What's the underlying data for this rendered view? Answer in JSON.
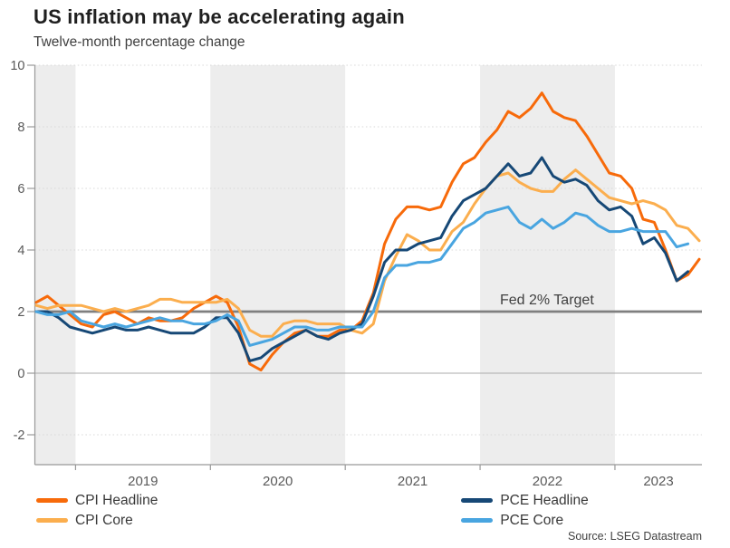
{
  "header": {
    "title": "US inflation may be accelerating again",
    "subtitle": "Twelve-month percentage change"
  },
  "annotations": {
    "fed_target_label": "Fed 2% Target"
  },
  "footer": {
    "source": "Source: LSEG Datastream"
  },
  "colors": {
    "cpi_headline": "#F76A0A",
    "cpi_core": "#FBAE4E",
    "pce_headline": "#164876",
    "pce_core": "#49A5E0",
    "fed_target_line": "#7F7F7F",
    "zero_line": "#ABABAB",
    "axis": "#999999",
    "year_band": "#EDEDED",
    "gridline": "#D8D8D8",
    "tick_label": "#595959"
  },
  "chart_data": {
    "type": "line",
    "title": "US inflation may be accelerating again",
    "subtitle": "Twelve-month percentage change",
    "x_unit": "month",
    "x_start": "2018-09",
    "x_tick_labels": [
      "2019",
      "2020",
      "2021",
      "2022",
      "2023"
    ],
    "y_ticks": [
      10,
      8,
      6,
      4,
      2,
      0,
      -2
    ],
    "ylim": [
      -3,
      10
    ],
    "grid": "dotted horizontal gridlines; alternating years shaded gray (2018 partial, 2020, 2022)",
    "legend_position": "bottom",
    "reference_line": {
      "label": "Fed 2% Target",
      "value": 2
    },
    "series": [
      {
        "name": "CPI Headline",
        "color": "#F76A0A",
        "values": [
          2.3,
          2.5,
          2.2,
          1.9,
          1.6,
          1.5,
          1.9,
          2.0,
          1.8,
          1.6,
          1.8,
          1.7,
          1.7,
          1.8,
          2.1,
          2.3,
          2.5,
          2.3,
          1.5,
          0.3,
          0.1,
          0.6,
          1.0,
          1.3,
          1.4,
          1.2,
          1.2,
          1.4,
          1.4,
          1.7,
          2.6,
          4.2,
          5.0,
          5.4,
          5.4,
          5.3,
          5.4,
          6.2,
          6.8,
          7.0,
          7.5,
          7.9,
          8.5,
          8.3,
          8.6,
          9.1,
          8.5,
          8.3,
          8.2,
          7.7,
          7.1,
          6.5,
          6.4,
          6.0,
          5.0,
          4.9,
          4.0,
          3.0,
          3.2,
          3.7
        ]
      },
      {
        "name": "CPI Core",
        "color": "#FBAE4E",
        "values": [
          2.2,
          2.1,
          2.2,
          2.2,
          2.2,
          2.1,
          2.0,
          2.1,
          2.0,
          2.1,
          2.2,
          2.4,
          2.4,
          2.3,
          2.3,
          2.3,
          2.3,
          2.4,
          2.1,
          1.4,
          1.2,
          1.2,
          1.6,
          1.7,
          1.7,
          1.6,
          1.6,
          1.6,
          1.4,
          1.3,
          1.6,
          3.0,
          3.8,
          4.5,
          4.3,
          4.0,
          4.0,
          4.6,
          4.9,
          5.5,
          6.0,
          6.4,
          6.5,
          6.2,
          6.0,
          5.9,
          5.9,
          6.3,
          6.6,
          6.3,
          6.0,
          5.7,
          5.6,
          5.5,
          5.6,
          5.5,
          5.3,
          4.8,
          4.7,
          4.3
        ]
      },
      {
        "name": "PCE Headline",
        "color": "#164876",
        "values": [
          2.0,
          2.0,
          1.8,
          1.5,
          1.4,
          1.3,
          1.4,
          1.5,
          1.4,
          1.4,
          1.5,
          1.4,
          1.3,
          1.3,
          1.3,
          1.5,
          1.8,
          1.8,
          1.3,
          0.4,
          0.5,
          0.8,
          1.0,
          1.2,
          1.4,
          1.2,
          1.1,
          1.3,
          1.4,
          1.6,
          2.5,
          3.6,
          4.0,
          4.0,
          4.2,
          4.3,
          4.4,
          5.1,
          5.6,
          5.8,
          6.0,
          6.4,
          6.8,
          6.4,
          6.5,
          7.0,
          6.4,
          6.2,
          6.3,
          6.1,
          5.6,
          5.3,
          5.4,
          5.1,
          4.2,
          4.4,
          3.9,
          3.0,
          3.3
        ]
      },
      {
        "name": "PCE Core",
        "color": "#49A5E0",
        "values": [
          2.0,
          1.9,
          1.9,
          2.0,
          1.7,
          1.6,
          1.5,
          1.6,
          1.5,
          1.6,
          1.7,
          1.8,
          1.7,
          1.7,
          1.6,
          1.6,
          1.7,
          1.9,
          1.7,
          0.9,
          1.0,
          1.1,
          1.3,
          1.5,
          1.5,
          1.4,
          1.4,
          1.5,
          1.5,
          1.5,
          2.0,
          3.1,
          3.5,
          3.5,
          3.6,
          3.6,
          3.7,
          4.2,
          4.7,
          4.9,
          5.2,
          5.3,
          5.4,
          4.9,
          4.7,
          5.0,
          4.7,
          4.9,
          5.2,
          5.1,
          4.8,
          4.6,
          4.6,
          4.7,
          4.6,
          4.6,
          4.6,
          4.1,
          4.2
        ]
      }
    ],
    "source": "Source: LSEG Datastream"
  }
}
